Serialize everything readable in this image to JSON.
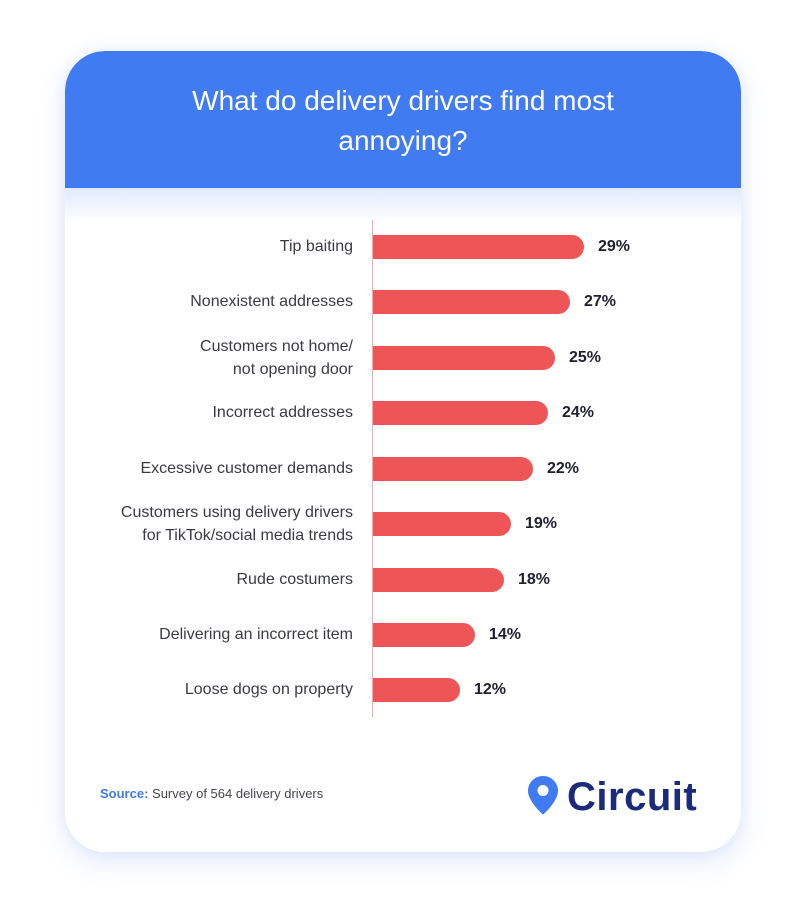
{
  "header": {
    "title": "What do delivery drivers find most annoying?"
  },
  "chart_data": {
    "type": "bar",
    "orientation": "horizontal",
    "title": "What do delivery drivers find most annoying?",
    "xlabel": "",
    "ylabel": "",
    "unit": "%",
    "categories": [
      "Tip baiting",
      "Nonexistent addresses",
      "Customers not home/ not opening door",
      "Incorrect addresses",
      "Excessive customer demands",
      "Customers using delivery drivers for TikTok/social media trends",
      "Rude costumers",
      "Delivering an incorrect item",
      "Loose dogs on property"
    ],
    "values": [
      29,
      27,
      25,
      24,
      22,
      19,
      18,
      14,
      12
    ],
    "labels": [
      "29%",
      "27%",
      "25%",
      "24%",
      "22%",
      "19%",
      "18%",
      "14%",
      "12%"
    ],
    "bar_color": "#ee5557",
    "grid": false,
    "legend": null
  },
  "rows": [
    {
      "label": "Tip baiting",
      "value": "29%"
    },
    {
      "label": "Nonexistent addresses",
      "value": "27%"
    },
    {
      "label": "Customers not home/ not opening door",
      "value": "25%"
    },
    {
      "label": "Incorrect addresses",
      "value": "24%"
    },
    {
      "label": "Excessive customer demands",
      "value": "22%"
    },
    {
      "label": "Customers using delivery drivers for TikTok/social media trends",
      "value": "19%"
    },
    {
      "label": "Rude costumers",
      "value": "18%"
    },
    {
      "label": "Delivering an incorrect item",
      "value": "14%"
    },
    {
      "label": "Loose dogs on property",
      "value": "12%"
    }
  ],
  "footer": {
    "source_label": "Source:",
    "source_text": " Survey of 564 delivery drivers",
    "logo_text": "Circuit",
    "logo_icon": "map-pin-icon"
  },
  "colors": {
    "header": "#407bf2",
    "bar": "#ee5557",
    "logo_text": "#1b2a7a",
    "logo_icon": "#407bf2",
    "source_label": "#407bf2"
  }
}
